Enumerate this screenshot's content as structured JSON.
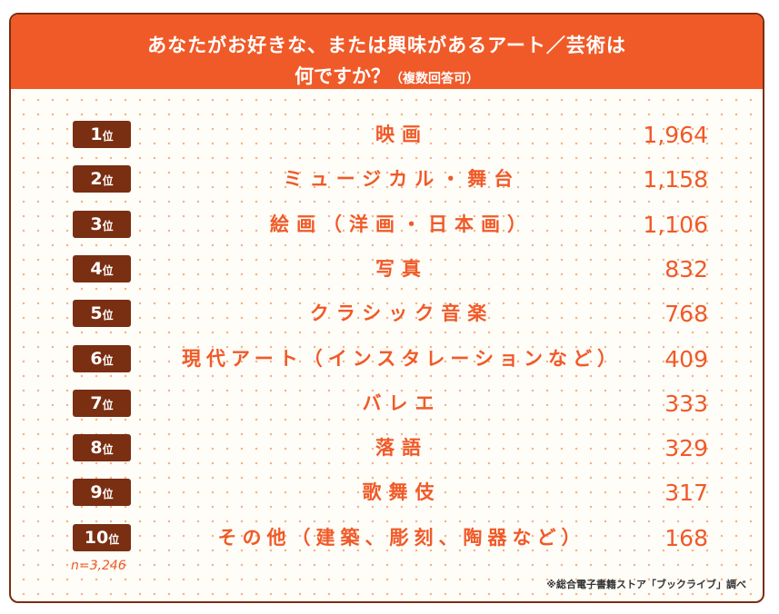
{
  "chart_data": {
    "type": "table",
    "title_line1": "あなたがお好きな、または興味があるアート／芸術は",
    "title_line2": "何ですか？",
    "title_sub": "（複数回答可）",
    "rank_suffix": "位",
    "rows": [
      {
        "rank": "1",
        "label": "映画",
        "value": "1,964"
      },
      {
        "rank": "2",
        "label": "ミュージカル・舞台",
        "value": "1,158"
      },
      {
        "rank": "3",
        "label": "絵画（洋画・日本画）",
        "value": "1,106"
      },
      {
        "rank": "4",
        "label": "写真",
        "value": "832"
      },
      {
        "rank": "5",
        "label": "クラシック音楽",
        "value": "768"
      },
      {
        "rank": "6",
        "label": "現代アート（インスタレーションなど）",
        "value": "409"
      },
      {
        "rank": "7",
        "label": "バレエ",
        "value": "333"
      },
      {
        "rank": "8",
        "label": "落語",
        "value": "329"
      },
      {
        "rank": "9",
        "label": "歌舞伎",
        "value": "317"
      },
      {
        "rank": "10",
        "label": "その他（建築、彫刻、陶器など）",
        "value": "168"
      }
    ],
    "n_note": "n=3,246",
    "source": "※総合電子書籍ストア「ブックライブ」調べ"
  },
  "colors": {
    "accent": "#f05a28",
    "badge": "#7a2e12",
    "border": "#7a2e12"
  }
}
